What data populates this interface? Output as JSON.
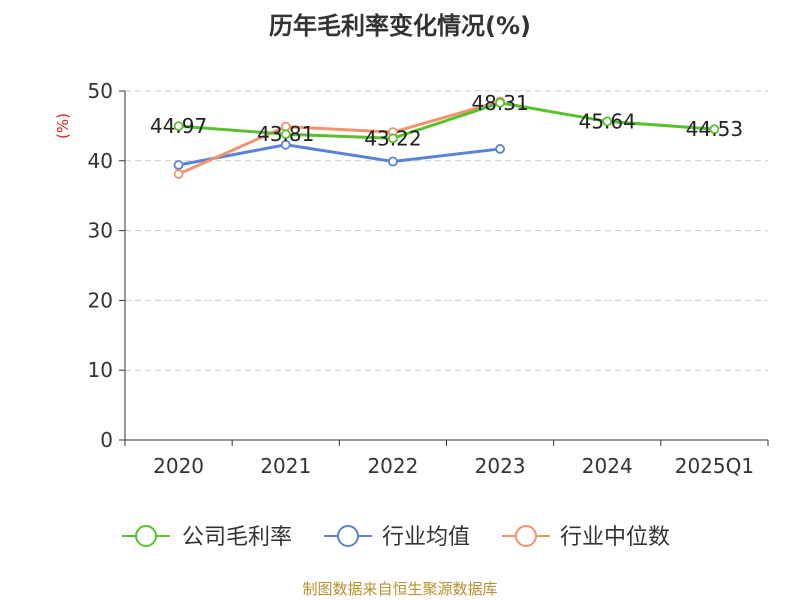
{
  "title": "历年毛利率变化情况(%)",
  "footer": "制图数据来自恒生聚源数据库",
  "chart_data": {
    "type": "line",
    "title": "历年毛利率变化情况(%)",
    "ylabel": "(%)",
    "ylim": [
      0,
      50
    ],
    "yticks": [
      0,
      10,
      20,
      30,
      40,
      50
    ],
    "categories": [
      "2020",
      "2021",
      "2022",
      "2023",
      "2024",
      "2025Q1"
    ],
    "grid": "horizontal-dashed",
    "legend_position": "bottom",
    "series": [
      {
        "name": "公司毛利率",
        "color": "#5ac12e",
        "values": [
          44.97,
          43.81,
          43.22,
          48.31,
          45.64,
          44.53
        ],
        "labels": [
          "44.97",
          "43.81",
          "43.22",
          "48.31",
          "45.64",
          "44.53"
        ]
      },
      {
        "name": "行业均值",
        "color": "#5b82d6",
        "values": [
          39.4,
          42.3,
          39.9,
          41.7,
          null,
          null
        ]
      },
      {
        "name": "行业中位数",
        "color": "#f4936b",
        "values": [
          38.1,
          44.9,
          44.1,
          48.5,
          null,
          null
        ]
      }
    ]
  }
}
